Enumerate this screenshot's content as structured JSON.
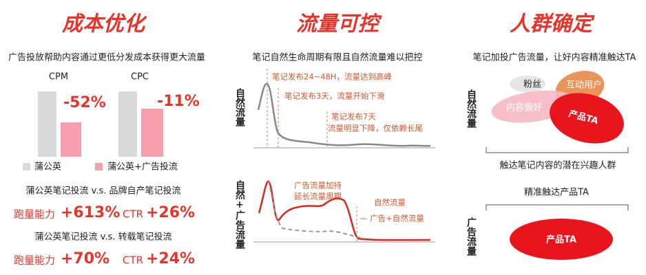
{
  "panels": [
    {
      "title": "成本优化",
      "subtitle": "广告投放帮助内容通过更低分发成本获得更大流量",
      "metrics": [
        {
          "label": "CPM",
          "change": "-52%"
        },
        {
          "label": "CPC",
          "change": "-11%"
        }
      ],
      "legend": [
        "蒲公英",
        "蒲公英+广告投流"
      ],
      "comparisons": [
        {
          "title": "蒲公英笔记投流 v.s. 品牌自产笔记投流",
          "items": [
            {
              "label": "跑量能力",
              "value": "+613%"
            },
            {
              "label": "CTR",
              "value": "+26%"
            }
          ]
        },
        {
          "title": "蒲公英笔记投流 v.s. 转载笔记投流",
          "items": [
            {
              "label": "跑量能力",
              "value": "+70%"
            },
            {
              "label": "CTR",
              "value": "+24%"
            }
          ]
        }
      ]
    },
    {
      "title": "流量可控",
      "subtitle": "笔记自然生命周期有限且自然流量难以把控",
      "top_chart": {
        "axis_label": "自然流量",
        "annotations": [
          "笔记发布24~48H，流量达到高峰",
          "笔记发布3天，流量开始下滑",
          "笔记发布7天",
          "流量明显下降，仅依赖长尾"
        ]
      },
      "bottom_chart": {
        "axis_label": "自然+广告流量",
        "annotations": [
          "广告流量加持",
          "延长流量周期",
          "自然流量",
          "— 广告+自然流量"
        ]
      }
    },
    {
      "title": "人群确定",
      "subtitle": "笔记加投广告流量，让好内容精准触达TA",
      "top": {
        "axis_label": "自然流量",
        "bubbles": [
          "粉丝",
          "互动用户",
          "内容偏好",
          "产品TA"
        ],
        "caption": "触达笔记内容的潜在兴趣人群"
      },
      "bottom": {
        "caption": "精准触达产品TA",
        "axis_label": "广告流量",
        "bubble": "产品TA"
      }
    }
  ]
}
